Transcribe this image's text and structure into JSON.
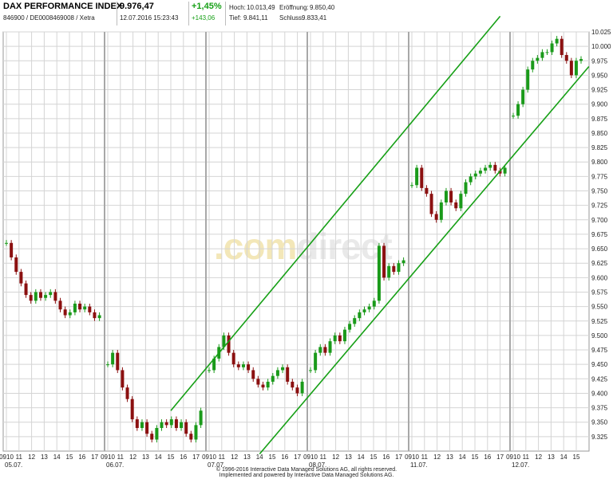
{
  "header": {
    "title": "DAX PERFORMANCE INDEX",
    "ident": "846900 / DE0008469008 / Xetra",
    "price": "9.976,47",
    "timestamp": "12.07.2016 15:23:43",
    "change_pct": "+1,45%",
    "change_abs": "+143,06",
    "high_label": "Hoch:",
    "high": "10.013,49",
    "low_label": "Tief:",
    "low": "9.841,11",
    "open_label": "Eröffnung:",
    "open": "9.850,40",
    "close_label": "Schluss:",
    "close": "9.833,41"
  },
  "watermark": {
    "prefix": ".com",
    "suffix": "direct"
  },
  "footer": {
    "line1": "© 1996-2016 Interactive Data Managed Solutions AG, all rights reserved.",
    "line2": "Implemented and powered by Interactive Data Managed Solutions AG."
  },
  "colors": {
    "up": "#1a9a1a",
    "down": "#8b1010",
    "channel": "#16a016",
    "grid": "#d4d4d4",
    "daysep": "#a8a8a8"
  },
  "chart_data": {
    "type": "line",
    "chart_style": "intraday candlestick",
    "ylim": [
      9300,
      10025
    ],
    "yticks": [
      "9.325",
      "9.350",
      "9.375",
      "9.400",
      "9.425",
      "9.450",
      "9.475",
      "9.500",
      "9.525",
      "9.550",
      "9.575",
      "9.600",
      "9.625",
      "9.650",
      "9.675",
      "9.700",
      "9.725",
      "9.750",
      "9.775",
      "9.800",
      "9.825",
      "9.850",
      "9.875",
      "9.900",
      "9.925",
      "9.950",
      "9.975",
      "10.000",
      "10.025"
    ],
    "days": [
      {
        "label": "05.07.",
        "hours": [
          "0910",
          "11",
          "12",
          "13",
          "14",
          "15",
          "16",
          "17"
        ],
        "series": [
          9660,
          9635,
          9610,
          9590,
          9570,
          9560,
          9575,
          9565,
          9570,
          9575,
          9560,
          9545,
          9535,
          9540,
          9555,
          9545,
          9550,
          9540,
          9530,
          9535
        ]
      },
      {
        "label": "06.07.",
        "hours": [
          "0910",
          "11",
          "12",
          "13",
          "14",
          "15",
          "16",
          "17"
        ],
        "series": [
          9450,
          9470,
          9440,
          9410,
          9390,
          9355,
          9340,
          9350,
          9330,
          9320,
          9340,
          9350,
          9345,
          9355,
          9340,
          9350,
          9330,
          9320,
          9345,
          9370
        ]
      },
      {
        "label": "07.07.",
        "hours": [
          "0910",
          "11",
          "12",
          "13",
          "14",
          "15",
          "16",
          "17"
        ],
        "series": [
          9440,
          9460,
          9480,
          9500,
          9470,
          9450,
          9445,
          9450,
          9440,
          9425,
          9415,
          9410,
          9420,
          9430,
          9440,
          9445,
          9420,
          9410,
          9400,
          9420
        ]
      },
      {
        "label": "08.07.",
        "hours": [
          "0910",
          "11",
          "12",
          "13",
          "14",
          "15",
          "16",
          "17"
        ],
        "series": [
          9440,
          9470,
          9480,
          9470,
          9490,
          9500,
          9490,
          9510,
          9520,
          9530,
          9540,
          9545,
          9550,
          9560,
          9655,
          9600,
          9620,
          9610,
          9625,
          9630
        ]
      },
      {
        "label": "11.07.",
        "hours": [
          "0910",
          "11",
          "12",
          "13",
          "14",
          "15",
          "16",
          "17"
        ],
        "series": [
          9760,
          9790,
          9755,
          9745,
          9710,
          9700,
          9730,
          9750,
          9730,
          9720,
          9745,
          9765,
          9775,
          9780,
          9785,
          9790,
          9795,
          9785,
          9780,
          9790
        ]
      },
      {
        "label": "12.07.",
        "hours": [
          "0910",
          "11",
          "12",
          "13",
          "14",
          "15"
        ],
        "series": [
          9880,
          9900,
          9925,
          9960,
          9975,
          9980,
          9990,
          9990,
          10005,
          10013,
          9985,
          9975,
          9950,
          9975,
          9978
        ]
      }
    ],
    "trend_channel": {
      "upper": {
        "from": {
          "day": 1,
          "hour": "14",
          "value": 9370
        },
        "to": {
          "day": 4,
          "hour": "16",
          "value": 10052
        }
      },
      "lower": {
        "from": {
          "day": 2,
          "hour": "13",
          "value": 9295
        },
        "to": {
          "day": 5,
          "hour": "15",
          "value": 9965
        }
      }
    }
  }
}
